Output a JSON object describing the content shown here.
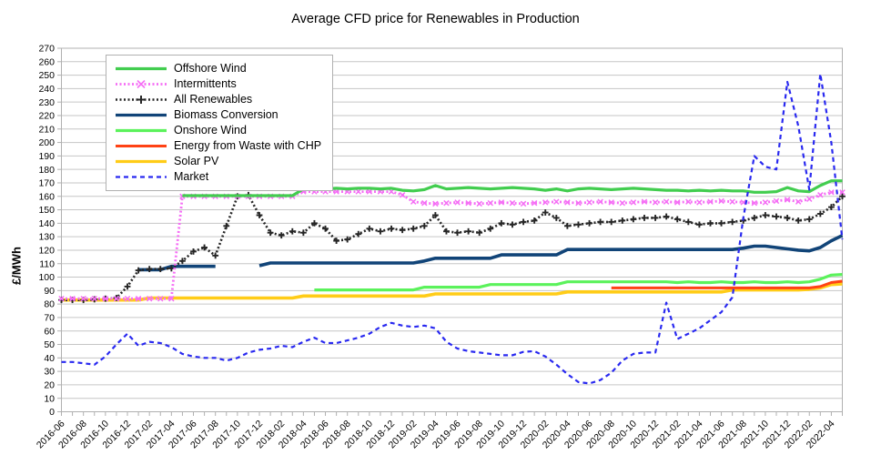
{
  "title": "Average CFD price for Renewables in Production",
  "y_axis_title": "£/MWh",
  "chart_data": {
    "type": "line",
    "title": "Average CFD price for Renewables in Production",
    "xlabel": "",
    "ylabel": "£/MWh",
    "ylim": [
      0,
      270
    ],
    "y_tick_step": 10,
    "y_tick_labels": [
      "0",
      "10",
      "20",
      "30",
      "40",
      "50",
      "60",
      "70",
      "80",
      "90",
      "100",
      "110",
      "120",
      "130",
      "140",
      "150",
      "160",
      "170",
      "180",
      "190",
      "200",
      "210",
      "220",
      "230",
      "240",
      "250",
      "260",
      "270"
    ],
    "grid": "horizontal",
    "legend_position": "top-left-inside",
    "x_start": "2016-06",
    "x_end": "2022-05",
    "x_tick_labels": [
      "2016-06",
      "2016-08",
      "2016-10",
      "2016-12",
      "2017-02",
      "2017-04",
      "2017-06",
      "2017-08",
      "2017-10",
      "2017-12",
      "2018-02",
      "2018-04",
      "2018-06",
      "2018-08",
      "2018-10",
      "2018-12",
      "2019-02",
      "2019-04",
      "2019-06",
      "2019-08",
      "2019-10",
      "2019-12",
      "2020-02",
      "2020-04",
      "2020-06",
      "2020-08",
      "2020-10",
      "2020-12",
      "2021-02",
      "2021-04",
      "2021-06",
      "2021-08",
      "2021-10",
      "2021-12",
      "2022-02",
      "2022-04"
    ],
    "draw_order": [
      6,
      5,
      4,
      3,
      2,
      1,
      0,
      7
    ],
    "axis_color": "#b0b0b0",
    "grid_color": "#c6c6c6",
    "series": [
      {
        "name": "Offshore Wind",
        "color": "#42CD4F",
        "style": "solid",
        "width": 3.2,
        "marker": "none",
        "values": [
          null,
          null,
          null,
          null,
          null,
          null,
          null,
          null,
          null,
          null,
          null,
          160.5,
          160.5,
          160.5,
          160.5,
          160.5,
          160.5,
          160.5,
          160.5,
          160.5,
          160.5,
          160.5,
          165.5,
          166,
          165.5,
          166,
          165.5,
          166,
          166,
          165.5,
          166,
          164.5,
          164,
          165,
          168,
          165.5,
          166,
          166.5,
          166,
          165.5,
          166,
          166.5,
          166,
          165.5,
          164.5,
          165.5,
          164,
          165.5,
          166,
          165.5,
          165,
          165.5,
          166,
          165.5,
          165,
          164.5,
          164.5,
          164,
          164.5,
          164,
          164.5,
          164,
          164,
          163,
          163,
          163.5,
          166.5,
          164,
          163.5,
          168,
          171.5,
          171.5
        ]
      },
      {
        "name": "Intermittents",
        "color": "#F56EF5",
        "style": "dotted",
        "width": 2.8,
        "marker": "x",
        "values": [
          84,
          84,
          84,
          84,
          84,
          84,
          84,
          84,
          84,
          84,
          84,
          160,
          160,
          160,
          160,
          160,
          160,
          160,
          160,
          160,
          160,
          160,
          163.5,
          163.5,
          163.5,
          163.5,
          163.5,
          163.5,
          163.5,
          163.5,
          163.5,
          161,
          156,
          155,
          154.5,
          155,
          155.5,
          155,
          154.5,
          155,
          155.5,
          155,
          154.5,
          155,
          155.5,
          156,
          155.5,
          155,
          155.5,
          156,
          155.5,
          155,
          155.5,
          156,
          155.5,
          156,
          155.5,
          156,
          155.5,
          156,
          156.5,
          156,
          155.5,
          155,
          155.5,
          156.5,
          157.5,
          156,
          158,
          161,
          163,
          163
        ]
      },
      {
        "name": "All Renewables",
        "color": "#262626",
        "style": "dotted",
        "width": 2.6,
        "marker": "plus",
        "values": [
          83,
          83,
          83,
          83.5,
          84,
          84.5,
          93,
          105,
          106,
          106,
          106.5,
          112,
          119,
          122,
          116,
          138,
          160,
          161,
          146,
          133,
          131,
          134,
          133,
          140,
          136,
          127,
          128,
          132,
          136,
          134,
          136,
          135,
          136,
          138,
          146,
          134,
          133,
          134,
          133,
          136,
          140,
          139,
          141,
          142,
          148,
          144,
          138,
          139,
          140,
          141,
          141,
          142,
          143,
          144,
          144,
          145,
          143,
          141,
          139,
          140,
          140,
          141,
          142,
          144,
          146,
          145,
          144,
          142,
          143,
          147,
          152,
          160
        ]
      },
      {
        "name": "Biomass Conversion",
        "color": "#114478",
        "style": "solid",
        "width": 3.6,
        "marker": "none",
        "values": [
          null,
          null,
          null,
          null,
          null,
          null,
          null,
          105.5,
          105.5,
          105.5,
          108,
          108,
          108,
          108,
          108,
          null,
          null,
          null,
          108.5,
          110.5,
          110.5,
          110.5,
          110.5,
          110.5,
          110.5,
          110.5,
          110.5,
          110.5,
          110.5,
          110.5,
          110.5,
          110.5,
          110.5,
          112,
          114,
          114,
          114,
          114,
          114,
          114,
          116.5,
          116.5,
          116.5,
          116.5,
          116.5,
          116.5,
          120.5,
          120.5,
          120.5,
          120.5,
          120.5,
          120.5,
          120.5,
          120.5,
          120.5,
          120.5,
          120.5,
          120.5,
          120.5,
          120.5,
          120.5,
          120.5,
          121.5,
          123,
          123,
          122,
          121,
          120,
          119.5,
          122,
          127,
          131
        ]
      },
      {
        "name": "Onshore Wind",
        "color": "#5BF25B",
        "style": "solid",
        "width": 3.2,
        "marker": "none",
        "values": [
          null,
          null,
          null,
          null,
          null,
          null,
          null,
          null,
          null,
          null,
          null,
          null,
          null,
          null,
          null,
          null,
          null,
          null,
          null,
          null,
          null,
          null,
          null,
          90.5,
          90.5,
          90.5,
          90.5,
          90.5,
          90.5,
          90.5,
          90.5,
          90.5,
          90.5,
          92.5,
          92.5,
          92.5,
          92.5,
          92.5,
          92.5,
          94.5,
          94.5,
          94.5,
          94.5,
          94.5,
          94.5,
          94.5,
          96.5,
          96.5,
          96.5,
          96.5,
          96.5,
          96.5,
          96.5,
          96.5,
          96.5,
          96.5,
          96,
          96.5,
          96,
          96,
          96.5,
          96,
          96,
          96.5,
          96,
          96,
          96.5,
          96,
          96.5,
          98.5,
          101.5,
          102
        ]
      },
      {
        "name": "Energy from Waste with CHP",
        "color": "#FF4214",
        "style": "solid",
        "width": 3,
        "marker": "none",
        "values": [
          null,
          null,
          null,
          null,
          null,
          null,
          null,
          null,
          null,
          null,
          null,
          null,
          null,
          null,
          null,
          null,
          null,
          null,
          null,
          null,
          null,
          null,
          null,
          null,
          null,
          null,
          null,
          null,
          null,
          null,
          null,
          null,
          null,
          null,
          null,
          null,
          null,
          null,
          null,
          null,
          null,
          null,
          null,
          null,
          null,
          null,
          null,
          null,
          null,
          null,
          92,
          92,
          92,
          92,
          92,
          92,
          92,
          92,
          92,
          92,
          92,
          92,
          92,
          92,
          92,
          92,
          92,
          92,
          92,
          93,
          96,
          97
        ]
      },
      {
        "name": "Solar PV",
        "color": "#FFCC17",
        "style": "solid",
        "width": 3.6,
        "marker": "none",
        "values": [
          83,
          83,
          83,
          83,
          83,
          83,
          83,
          83,
          84.5,
          84.5,
          84.5,
          84.5,
          84.5,
          84.5,
          84.5,
          84.5,
          84.5,
          84.5,
          84.5,
          84.5,
          84.5,
          84.5,
          86,
          86,
          86,
          86,
          86,
          86,
          86,
          86,
          86,
          86,
          86,
          86,
          87.5,
          87.5,
          87.5,
          87.5,
          87.5,
          87.5,
          87.5,
          87.5,
          87.5,
          87.5,
          87.5,
          87.5,
          89,
          89,
          89,
          89,
          89,
          89,
          89,
          89,
          89,
          89,
          89,
          89,
          89,
          89,
          89,
          90.5,
          90.5,
          90.5,
          90.5,
          90.5,
          90.5,
          90.5,
          91,
          92,
          94.5,
          95
        ]
      },
      {
        "name": "Market",
        "color": "#2929F0",
        "style": "dashed",
        "width": 2.2,
        "marker": "none",
        "values": [
          37,
          37,
          36,
          35,
          41,
          50,
          58,
          49,
          52,
          51,
          48,
          43,
          41,
          40,
          40,
          38,
          40,
          44,
          46,
          47,
          49,
          48,
          52,
          55,
          51,
          51,
          53,
          55,
          58,
          63,
          66,
          64,
          63,
          64,
          62,
          52,
          47,
          45,
          44,
          43,
          42,
          42,
          44.5,
          45,
          41,
          35,
          28,
          22,
          21,
          23.5,
          29,
          38,
          43,
          44,
          44,
          81,
          54,
          58,
          62,
          68,
          74,
          85,
          144,
          190,
          182,
          180,
          245,
          212,
          165,
          251,
          200,
          128
        ]
      }
    ]
  }
}
